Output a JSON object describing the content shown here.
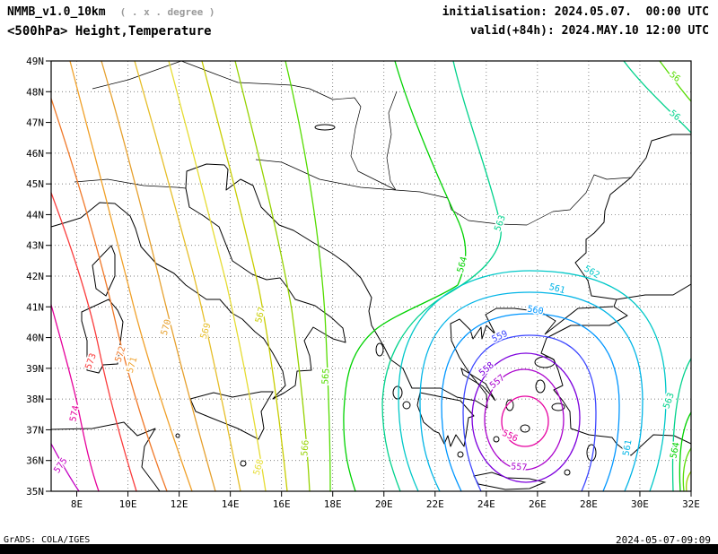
{
  "header": {
    "model": "NMMB_v1.0_10km",
    "resolution_note": "( . x . degree )",
    "field_title": "<500hPa> Height,Temperature",
    "initialisation": "initialisation: 2024.05.07.  00:00 UTC",
    "valid": "valid(+84h): 2024.MAY.10 12:00 UTC"
  },
  "footer": {
    "credit": "GrADS: COLA/IGES",
    "timestamp": "2024-05-07-09:09"
  },
  "map": {
    "domain": {
      "lon_min": 7,
      "lon_max": 32,
      "lat_min": 35,
      "lat_max": 49
    },
    "unit": "dam",
    "x_ticks": [
      {
        "label": "8E",
        "lon": 8
      },
      {
        "label": "10E",
        "lon": 10
      },
      {
        "label": "12E",
        "lon": 12
      },
      {
        "label": "14E",
        "lon": 14
      },
      {
        "label": "16E",
        "lon": 16
      },
      {
        "label": "18E",
        "lon": 18
      },
      {
        "label": "20E",
        "lon": 20
      },
      {
        "label": "22E",
        "lon": 22
      },
      {
        "label": "24E",
        "lon": 24
      },
      {
        "label": "26E",
        "lon": 26
      },
      {
        "label": "28E",
        "lon": 28
      },
      {
        "label": "30E",
        "lon": 30
      },
      {
        "label": "32E",
        "lon": 32
      }
    ],
    "y_ticks": [
      {
        "label": "49N",
        "lat": 49
      },
      {
        "label": "48N",
        "lat": 48
      },
      {
        "label": "47N",
        "lat": 47
      },
      {
        "label": "46N",
        "lat": 46
      },
      {
        "label": "45N",
        "lat": 45
      },
      {
        "label": "44N",
        "lat": 44
      },
      {
        "label": "43N",
        "lat": 43
      },
      {
        "label": "42N",
        "lat": 42
      },
      {
        "label": "41N",
        "lat": 41
      },
      {
        "label": "40N",
        "lat": 40
      },
      {
        "label": "39N",
        "lat": 39
      },
      {
        "label": "38N",
        "lat": 38
      },
      {
        "label": "37N",
        "lat": 37
      },
      {
        "label": "36N",
        "lat": 36
      },
      {
        "label": "35N",
        "lat": 35
      }
    ],
    "contours": [
      {
        "id": "575",
        "value": "575",
        "color": "#c300c3",
        "labels": [
          [
            70,
            521,
            -55
          ]
        ]
      },
      {
        "id": "574",
        "value": "574",
        "color": "#e6009b",
        "labels": [
          [
            86,
            462,
            -78
          ]
        ]
      },
      {
        "id": "573",
        "value": "573",
        "color": "#fa3c3c",
        "labels": [
          [
            104,
            404,
            -70
          ]
        ]
      },
      {
        "id": "572",
        "value": "572",
        "color": "#f07828",
        "labels": [
          [
            137,
            396,
            -72
          ]
        ]
      },
      {
        "id": "571",
        "value": "571",
        "color": "#f0a028",
        "labels": [
          [
            150,
            408,
            -73
          ]
        ]
      },
      {
        "id": "570",
        "value": "570",
        "color": "#e6a02d",
        "labels": [
          [
            188,
            366,
            -74
          ]
        ]
      },
      {
        "id": "569",
        "value": "569",
        "color": "#e6be28",
        "labels": [
          [
            232,
            370,
            -73
          ]
        ]
      },
      {
        "id": "568",
        "value": "568",
        "color": "#e6dc32",
        "labels": [
          [
            291,
            522,
            -74
          ]
        ]
      },
      {
        "id": "567",
        "value": "567",
        "color": "#c8cd00",
        "labels": [
          [
            293,
            352,
            -76
          ]
        ]
      },
      {
        "id": "566",
        "value": "566",
        "color": "#96d200",
        "labels": [
          [
            343,
            500,
            -85
          ]
        ]
      },
      {
        "id": "565",
        "value": "565",
        "color": "#55dc00",
        "labels": [
          [
            366,
            420,
            -86
          ]
        ]
      },
      {
        "id": "564",
        "value": "564",
        "color": "#00d200",
        "labels": [
          [
            518,
            296,
            -75
          ]
        ]
      },
      {
        "id": "563",
        "value": "563",
        "color": "#00d28c",
        "labels": [
          [
            560,
            250,
            -70
          ]
        ]
      },
      {
        "id": "562",
        "value": "562",
        "color": "#00c8c8",
        "labels": [
          [
            658,
            306,
            30
          ]
        ]
      },
      {
        "id": "561",
        "value": "561",
        "color": "#00b4e6",
        "labels": [
          [
            620,
            325,
            15
          ],
          [
            702,
            500,
            -80
          ]
        ]
      },
      {
        "id": "560",
        "value": "560",
        "color": "#0096ff",
        "labels": [
          [
            596,
            349,
            10
          ]
        ]
      },
      {
        "id": "559",
        "value": "559",
        "color": "#3c46ff",
        "labels": [
          [
            558,
            378,
            -25
          ]
        ]
      },
      {
        "id": "558",
        "value": "558",
        "color": "#7d00dd",
        "labels": [
          [
            544,
            414,
            -40
          ]
        ]
      },
      {
        "id": "557",
        "value": "557",
        "color": "#aa00cc",
        "labels": [
          [
            556,
            428,
            -40
          ],
          [
            578,
            524,
            5
          ]
        ]
      },
      {
        "id": "556",
        "value": "556",
        "color": "#e600a0",
        "labels": [
          [
            567,
            489,
            25
          ]
        ]
      },
      {
        "id": "563b",
        "value": "563",
        "color": "#00d28c",
        "labels": [
          [
            748,
            448,
            -70
          ]
        ]
      },
      {
        "id": "564b",
        "value": "564",
        "color": "#00d200",
        "labels": [
          [
            755,
            503,
            -78
          ]
        ]
      },
      {
        "id": "565b",
        "value": "565",
        "color": "#55dc00",
        "labels": []
      },
      {
        "id": "566b",
        "value": "566",
        "color": "#96d200",
        "labels": []
      },
      {
        "id": "ne-inner",
        "value": "56",
        "color": "#55dc00",
        "labels": [
          [
            750,
            88,
            40
          ]
        ]
      },
      {
        "id": "ne-outer",
        "value": "56",
        "color": "#00d28c",
        "labels": [
          [
            750,
            131,
            40
          ]
        ]
      }
    ]
  }
}
